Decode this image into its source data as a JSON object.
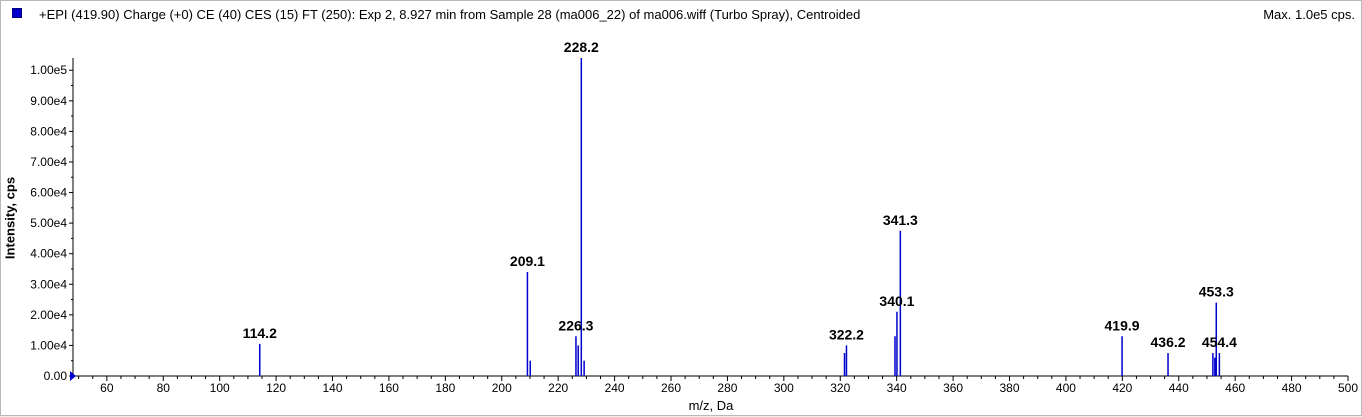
{
  "window": {
    "title": "+EPI (419.90) Charge (+0) CE (40) CES (15) FT (250): Exp 2, 8.927 min from Sample 28 (ma006_22) of ma006.wiff (Turbo Spray), Centroided",
    "max_label": "Max. 1.0e5 cps.",
    "series_color": "#0000cc"
  },
  "chart_data": {
    "type": "bar",
    "title": "+EPI (419.90) Charge (+0) CE (40) CES (15) FT (250): Exp 2, 8.927 min from Sample 28 (ma006_22) of ma006.wiff (Turbo Spray), Centroided",
    "xlabel": "m/z, Da",
    "ylabel": "Intensity, cps",
    "xlim": [
      48,
      500
    ],
    "ylim": [
      0,
      104000
    ],
    "x_ticks": [
      60,
      80,
      100,
      120,
      140,
      160,
      180,
      200,
      220,
      240,
      260,
      280,
      300,
      320,
      340,
      360,
      380,
      400,
      420,
      440,
      460,
      480,
      500
    ],
    "y_ticks": [
      {
        "value": 0,
        "label": "0.00"
      },
      {
        "value": 10000,
        "label": "1.00e4"
      },
      {
        "value": 20000,
        "label": "2.00e4"
      },
      {
        "value": 30000,
        "label": "3.00e4"
      },
      {
        "value": 40000,
        "label": "4.00e4"
      },
      {
        "value": 50000,
        "label": "5.00e4"
      },
      {
        "value": 60000,
        "label": "6.00e4"
      },
      {
        "value": 70000,
        "label": "7.00e4"
      },
      {
        "value": 80000,
        "label": "8.00e4"
      },
      {
        "value": 90000,
        "label": "9.00e4"
      },
      {
        "value": 100000,
        "label": "1.00e5"
      }
    ],
    "peaks": [
      {
        "mz": 114.2,
        "intensity": 10500,
        "label": "114.2"
      },
      {
        "mz": 209.1,
        "intensity": 34000,
        "label": "209.1"
      },
      {
        "mz": 210.1,
        "intensity": 5000,
        "label": ""
      },
      {
        "mz": 226.3,
        "intensity": 13000,
        "label": "226.3"
      },
      {
        "mz": 227.1,
        "intensity": 10000,
        "label": ""
      },
      {
        "mz": 228.2,
        "intensity": 104000,
        "label": "228.2"
      },
      {
        "mz": 229.2,
        "intensity": 5000,
        "label": ""
      },
      {
        "mz": 321.5,
        "intensity": 7500,
        "label": ""
      },
      {
        "mz": 322.2,
        "intensity": 10000,
        "label": "322.2"
      },
      {
        "mz": 339.4,
        "intensity": 13000,
        "label": ""
      },
      {
        "mz": 340.1,
        "intensity": 21000,
        "label": "340.1"
      },
      {
        "mz": 341.3,
        "intensity": 47500,
        "label": "341.3"
      },
      {
        "mz": 419.9,
        "intensity": 13000,
        "label": "419.9"
      },
      {
        "mz": 436.2,
        "intensity": 7500,
        "label": "436.2"
      },
      {
        "mz": 452.1,
        "intensity": 7500,
        "label": ""
      },
      {
        "mz": 452.8,
        "intensity": 6000,
        "label": ""
      },
      {
        "mz": 453.3,
        "intensity": 24000,
        "label": "453.3"
      },
      {
        "mz": 454.4,
        "intensity": 7500,
        "label": "454.4"
      }
    ],
    "grid": false,
    "legend": "top-left"
  }
}
